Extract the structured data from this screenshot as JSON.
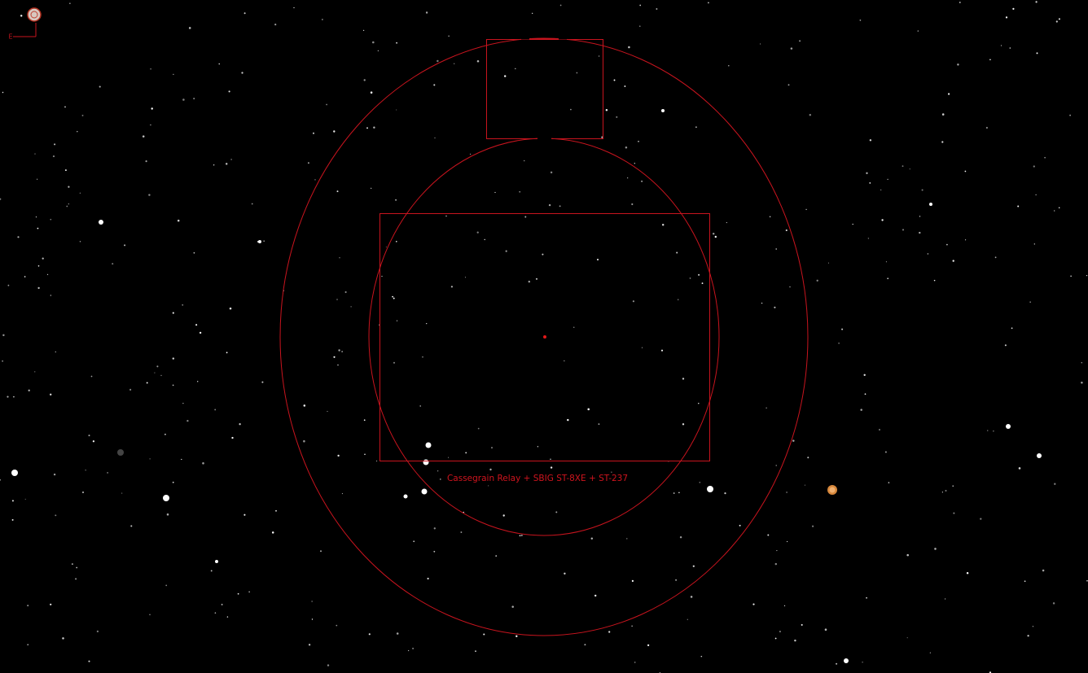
{
  "labels": {
    "compass_east": "E",
    "ccd_frame": "Cassegrain Relay + SBIG ST-8XE + ST-237"
  }
}
